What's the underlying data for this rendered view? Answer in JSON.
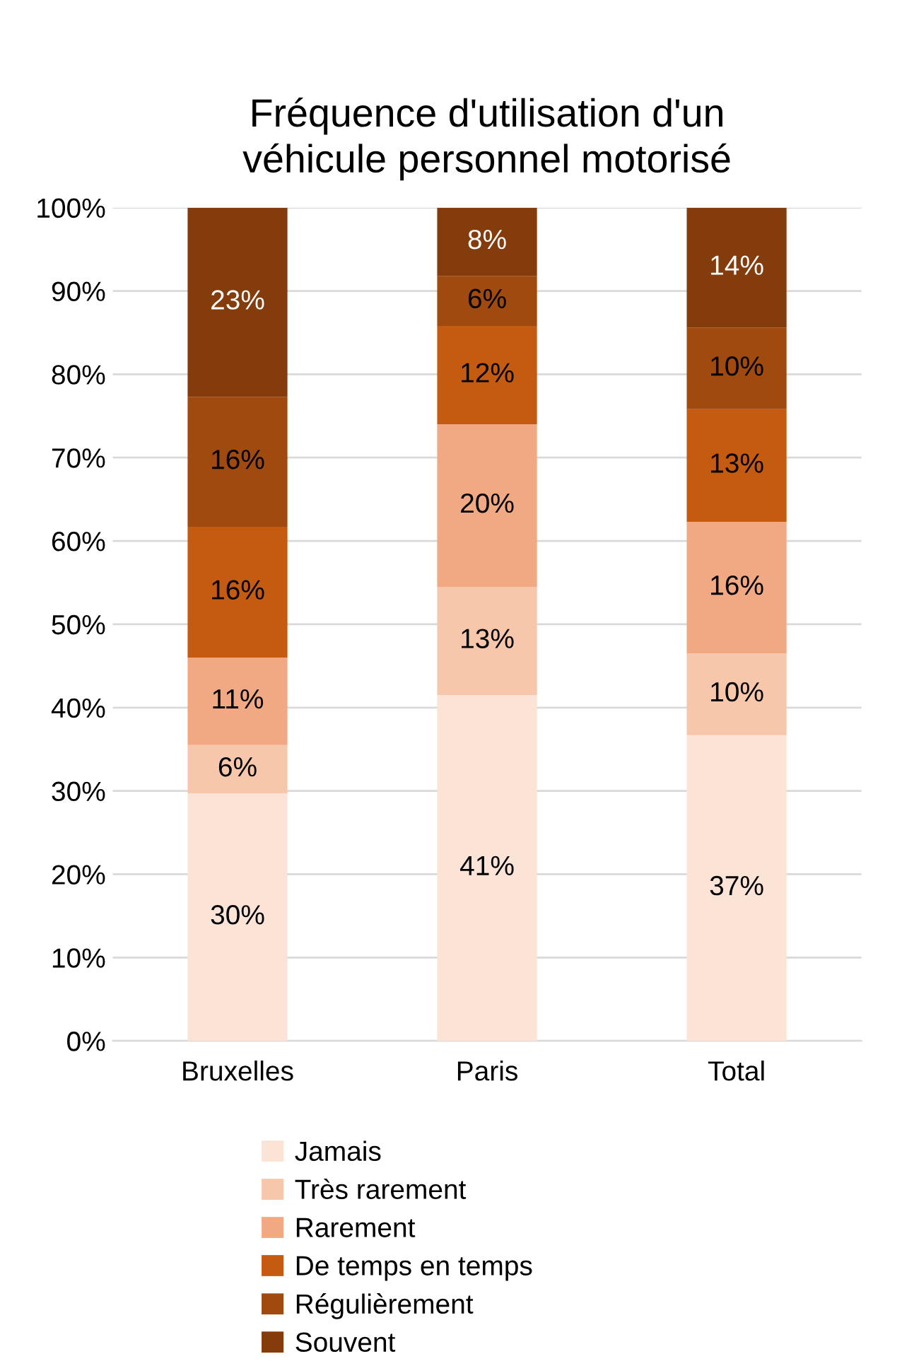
{
  "chart_data": {
    "type": "bar",
    "stacked": true,
    "title": "Fréquence d'utilisation d'un\nvéhicule personnel motorisé",
    "categories": [
      "Bruxelles",
      "Paris",
      "Total"
    ],
    "series": [
      {
        "name": "Jamais",
        "color": "#fbe3d6",
        "values": [
          29.7,
          41.5,
          36.7
        ],
        "value_labels": [
          "30%",
          "41%",
          "37%"
        ]
      },
      {
        "name": "Très rarement",
        "color": "#f7c7ac",
        "values": [
          5.8,
          13.0,
          9.8
        ],
        "value_labels": [
          "6%",
          "13%",
          "10%"
        ]
      },
      {
        "name": "Rarement",
        "color": "#f1a983",
        "values": [
          10.5,
          19.5,
          15.8
        ],
        "value_labels": [
          "11%",
          "20%",
          "16%"
        ]
      },
      {
        "name": "De temps en temps",
        "color": "#c55a11",
        "values": [
          15.7,
          11.8,
          13.5
        ],
        "value_labels": [
          "16%",
          "12%",
          "13%"
        ]
      },
      {
        "name": "Régulièrement",
        "color": "#a04a0f",
        "values": [
          15.6,
          6.0,
          9.8
        ],
        "value_labels": [
          "16%",
          "6%",
          "10%"
        ]
      },
      {
        "name": "Souvent",
        "color": "#843c0c",
        "values": [
          22.7,
          8.2,
          14.4
        ],
        "value_labels": [
          "23%",
          "8%",
          "14%"
        ]
      }
    ],
    "ylim": [
      0,
      100
    ],
    "yticks": [
      {
        "value": 0,
        "label": "0%"
      },
      {
        "value": 10,
        "label": "10%"
      },
      {
        "value": 20,
        "label": "20%"
      },
      {
        "value": 30,
        "label": "30%"
      },
      {
        "value": 40,
        "label": "40%"
      },
      {
        "value": 50,
        "label": "50%"
      },
      {
        "value": 60,
        "label": "60%"
      },
      {
        "value": 70,
        "label": "70%"
      },
      {
        "value": 80,
        "label": "80%"
      },
      {
        "value": 90,
        "label": "90%"
      },
      {
        "value": 100,
        "label": "100%"
      }
    ],
    "grid": "y",
    "legend": "bottom"
  }
}
